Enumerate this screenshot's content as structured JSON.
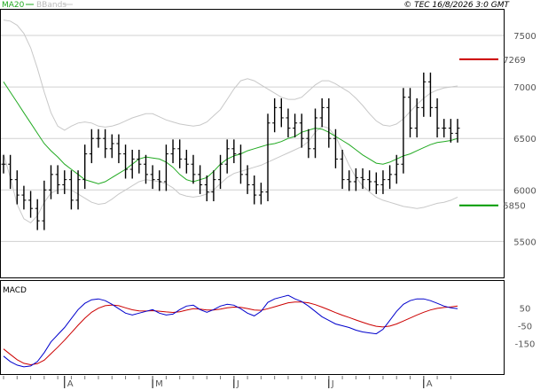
{
  "header": {
    "legend_ma": "MA20",
    "legend_bb": "BBands",
    "copyright": "© TEC 16/8/2026 3:0 GMT"
  },
  "colors": {
    "price": "#000000",
    "ma": "#22aa22",
    "bands": "#c8c8c8",
    "resistance": "#cc0000",
    "support": "#009900",
    "macd": "#0000cc",
    "signal": "#cc0000"
  },
  "chart_data": [
    {
      "type": "line",
      "panel": "price",
      "ylim": [
        5150,
        7750
      ],
      "y_ticks": [
        "7500",
        "7000",
        "6500",
        "6000",
        "5500"
      ],
      "x_ticks": [
        "A",
        "M",
        "J",
        "J",
        "A"
      ],
      "grid": true,
      "series": [
        {
          "name": "MA20",
          "values": [
            7050,
            6950,
            6850,
            6750,
            6650,
            6550,
            6450,
            6380,
            6320,
            6250,
            6200,
            6150,
            6100,
            6080,
            6060,
            6080,
            6120,
            6160,
            6200,
            6250,
            6300,
            6320,
            6310,
            6300,
            6270,
            6220,
            6150,
            6100,
            6080,
            6100,
            6120,
            6180,
            6250,
            6300,
            6330,
            6350,
            6380,
            6400,
            6420,
            6440,
            6450,
            6470,
            6500,
            6520,
            6560,
            6580,
            6600,
            6590,
            6560,
            6520,
            6480,
            6440,
            6390,
            6340,
            6300,
            6260,
            6250,
            6270,
            6300,
            6330,
            6350,
            6380,
            6410,
            6440,
            6460,
            6470,
            6480,
            6500
          ]
        },
        {
          "name": "BBands",
          "values": [
            7650,
            7640,
            7600,
            7520,
            7380,
            7180,
            6950,
            6750,
            6620,
            6580,
            6620,
            6650,
            6660,
            6650,
            6620,
            6610,
            6620,
            6640,
            6670,
            6700,
            6720,
            6740,
            6740,
            6710,
            6680,
            6660,
            6640,
            6630,
            6620,
            6630,
            6660,
            6720,
            6780,
            6880,
            6980,
            7060,
            7080,
            7060,
            7020,
            6980,
            6940,
            6900,
            6880,
            6880,
            6900,
            6960,
            7020,
            7060,
            7060,
            7030,
            6990,
            6950,
            6890,
            6820,
            6740,
            6670,
            6630,
            6620,
            6640,
            6690,
            6760,
            6830,
            6890,
            6940,
            6970,
            6990,
            7000,
            7010
          ]
        },
        {
          "name": "BBands lower",
          "values": [
            6350,
            6120,
            5860,
            5720,
            5680,
            5750,
            5880,
            5970,
            6000,
            6010,
            6000,
            5960,
            5920,
            5880,
            5860,
            5870,
            5910,
            5960,
            6000,
            6040,
            6080,
            6100,
            6090,
            6080,
            6060,
            6020,
            5960,
            5940,
            5930,
            5940,
            5960,
            6000,
            6060,
            6120,
            6160,
            6180,
            6200,
            6220,
            6240,
            6270,
            6300,
            6330,
            6360,
            6390,
            6420,
            6470,
            6560,
            6620,
            6600,
            6520,
            6380,
            6240,
            6120,
            6040,
            5980,
            5930,
            5900,
            5880,
            5860,
            5840,
            5830,
            5820,
            5830,
            5850,
            5870,
            5880,
            5900,
            5930
          ]
        },
        {
          "name": "Close",
          "values": [
            6250,
            6100,
            5950,
            5900,
            5820,
            5700,
            6000,
            6150,
            6050,
            6100,
            5900,
            6100,
            6350,
            6500,
            6500,
            6400,
            6450,
            6350,
            6200,
            6300,
            6250,
            6150,
            6100,
            6080,
            6350,
            6400,
            6300,
            6250,
            6150,
            6050,
            5980,
            6100,
            6250,
            6400,
            6350,
            6150,
            6050,
            5950,
            5980,
            6650,
            6800,
            6700,
            6600,
            6650,
            6500,
            6400,
            6700,
            6800,
            6500,
            6300,
            6100,
            6080,
            6120,
            6100,
            6080,
            6050,
            6100,
            6150,
            6250,
            6900,
            6600,
            6800,
            7050,
            6800,
            6600,
            6600,
            6550,
            6600
          ]
        }
      ],
      "levels": [
        {
          "label": "7269",
          "value": 7269
        },
        {
          "label": "5850",
          "value": 5850
        }
      ]
    },
    {
      "type": "line",
      "panel": "macd",
      "title": "MACD",
      "ylim": [
        -320,
        200
      ],
      "y_ticks": [
        "50",
        "-50",
        "-150"
      ],
      "series": [
        {
          "name": "MACD",
          "values": [
            -220,
            -250,
            -270,
            -280,
            -275,
            -250,
            -200,
            -140,
            -100,
            -60,
            -10,
            40,
            75,
            95,
            100,
            90,
            70,
            45,
            20,
            10,
            20,
            30,
            40,
            20,
            10,
            15,
            40,
            60,
            65,
            40,
            25,
            40,
            60,
            70,
            65,
            45,
            20,
            5,
            30,
            80,
            100,
            110,
            120,
            100,
            85,
            60,
            30,
            0,
            -20,
            -40,
            -50,
            -60,
            -75,
            -85,
            -90,
            -95,
            -70,
            -20,
            30,
            70,
            90,
            100,
            100,
            90,
            75,
            60,
            50,
            45
          ]
        },
        {
          "name": "Signal",
          "values": [
            -180,
            -210,
            -240,
            -260,
            -268,
            -262,
            -242,
            -206,
            -170,
            -131,
            -89,
            -47,
            -8,
            25,
            48,
            62,
            66,
            62,
            50,
            39,
            33,
            32,
            34,
            31,
            27,
            24,
            28,
            37,
            45,
            43,
            38,
            38,
            43,
            50,
            54,
            53,
            46,
            38,
            36,
            45,
            56,
            67,
            78,
            82,
            82,
            78,
            68,
            54,
            39,
            23,
            9,
            -4,
            -18,
            -31,
            -43,
            -53,
            -57,
            -52,
            -40,
            -24,
            -7,
            10,
            25,
            38,
            47,
            52,
            55,
            60
          ]
        }
      ]
    }
  ]
}
